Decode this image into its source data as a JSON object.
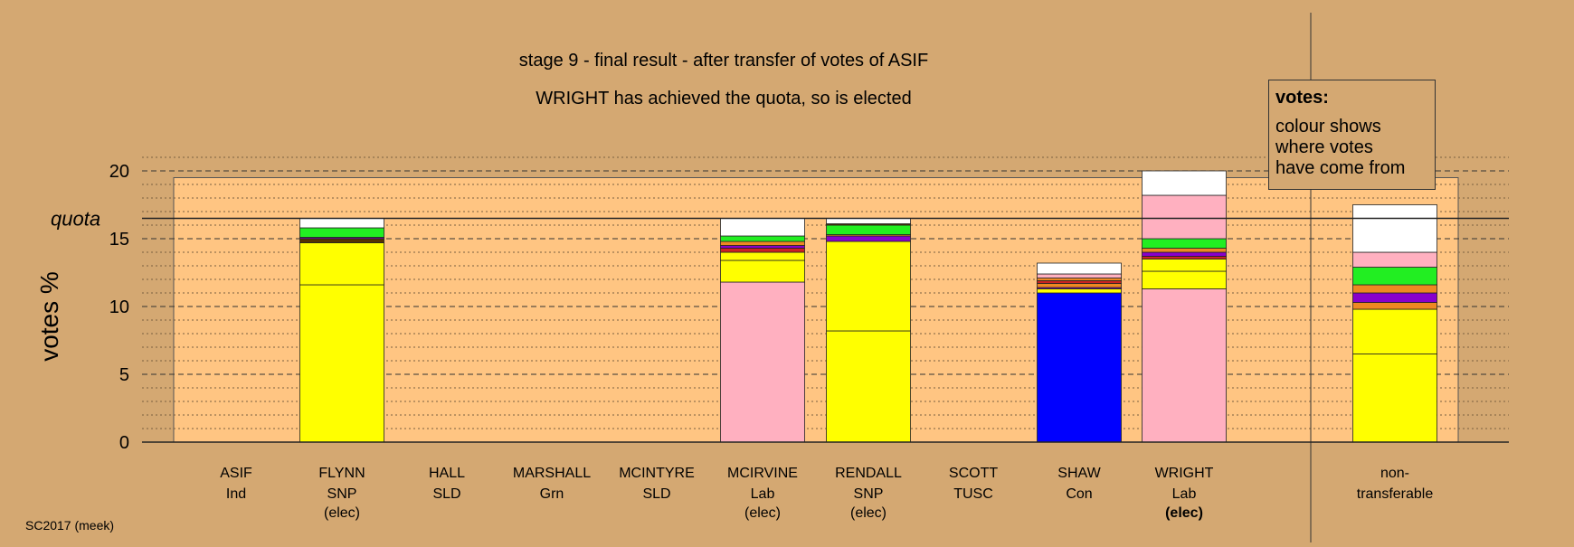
{
  "chart_data": {
    "type": "bar",
    "stacked": true,
    "title": "stage 9 - final result - after transfer of votes of ASIF",
    "subtitle": "WRIGHT has achieved the quota, so is elected",
    "ylabel": "votes %",
    "ylim": [
      0,
      21
    ],
    "yticks": [
      0,
      5,
      10,
      15,
      20
    ],
    "quota": 16.5,
    "quota_label": "quota",
    "grid": true,
    "legend": {
      "title": "votes:",
      "lines": [
        "colour shows",
        "where votes",
        "have come from"
      ],
      "position": "top-right"
    },
    "footnote": "SC2017 (meek)",
    "colors": {
      "yellow": "#ffff00",
      "pink": "#ffb0c0",
      "blue": "#0000ff",
      "green": "#22ee22",
      "orange": "#ee8822",
      "purple": "#8800cc",
      "red": "#cc2222",
      "darkbrown": "#553300",
      "white": "#ffffff",
      "plot_bg": "#ffc582",
      "page_bg": "#d4a872"
    },
    "categories": [
      {
        "name": "ASIF",
        "party": "Ind",
        "status": "",
        "segments": []
      },
      {
        "name": "FLYNN",
        "party": "SNP",
        "status": "(elec)",
        "status_bold": false,
        "segments": [
          {
            "color": "yellow",
            "value": 11.6
          },
          {
            "color": "yellow",
            "value": 3.1
          },
          {
            "color": "darkbrown",
            "value": 0.3
          },
          {
            "color": "purple",
            "value": 0.1
          },
          {
            "color": "green",
            "value": 0.7
          },
          {
            "color": "white",
            "value": 0.7
          }
        ]
      },
      {
        "name": "HALL",
        "party": "SLD",
        "status": "",
        "segments": []
      },
      {
        "name": "MARSHALL",
        "party": "Grn",
        "status": "",
        "segments": []
      },
      {
        "name": "MCINTYRE",
        "party": "SLD",
        "status": "",
        "segments": []
      },
      {
        "name": "MCIRVINE",
        "party": "Lab",
        "status": "(elec)",
        "status_bold": false,
        "segments": [
          {
            "color": "pink",
            "value": 11.8
          },
          {
            "color": "yellow",
            "value": 1.6
          },
          {
            "color": "yellow",
            "value": 0.6
          },
          {
            "color": "red",
            "value": 0.3
          },
          {
            "color": "purple",
            "value": 0.2
          },
          {
            "color": "orange",
            "value": 0.3
          },
          {
            "color": "green",
            "value": 0.4
          },
          {
            "color": "white",
            "value": 1.3
          }
        ]
      },
      {
        "name": "RENDALL",
        "party": "SNP",
        "status": "(elec)",
        "status_bold": false,
        "segments": [
          {
            "color": "yellow",
            "value": 8.2
          },
          {
            "color": "yellow",
            "value": 6.6
          },
          {
            "color": "purple",
            "value": 0.4
          },
          {
            "color": "orange",
            "value": 0.1
          },
          {
            "color": "green",
            "value": 0.7
          },
          {
            "color": "darkbrown",
            "value": 0.1
          },
          {
            "color": "white",
            "value": 0.4
          }
        ]
      },
      {
        "name": "SCOTT",
        "party": "TUSC",
        "status": "",
        "segments": []
      },
      {
        "name": "SHAW",
        "party": "Con",
        "status": "",
        "segments": [
          {
            "color": "blue",
            "value": 11.0
          },
          {
            "color": "yellow",
            "value": 0.3
          },
          {
            "color": "purple",
            "value": 0.1
          },
          {
            "color": "orange",
            "value": 0.3
          },
          {
            "color": "red",
            "value": 0.2
          },
          {
            "color": "orange",
            "value": 0.2
          },
          {
            "color": "pink",
            "value": 0.3
          },
          {
            "color": "white",
            "value": 0.8
          }
        ]
      },
      {
        "name": "WRIGHT",
        "party": "Lab",
        "status": "(elec)",
        "status_bold": true,
        "segments": [
          {
            "color": "pink",
            "value": 11.3
          },
          {
            "color": "yellow",
            "value": 1.3
          },
          {
            "color": "yellow",
            "value": 0.9
          },
          {
            "color": "red",
            "value": 0.2
          },
          {
            "color": "purple",
            "value": 0.3
          },
          {
            "color": "orange",
            "value": 0.3
          },
          {
            "color": "green",
            "value": 0.7
          },
          {
            "color": "pink",
            "value": 3.2
          },
          {
            "color": "white",
            "value": 1.8
          }
        ]
      },
      {
        "name": "non-",
        "party": "transferable",
        "status": "",
        "status_bold": false,
        "separated": true,
        "segments": [
          {
            "color": "yellow",
            "value": 6.5
          },
          {
            "color": "yellow",
            "value": 3.3
          },
          {
            "color": "orange",
            "value": 0.5
          },
          {
            "color": "purple",
            "value": 0.7
          },
          {
            "color": "orange",
            "value": 0.6
          },
          {
            "color": "green",
            "value": 1.3
          },
          {
            "color": "pink",
            "value": 1.1
          },
          {
            "color": "white",
            "value": 3.5
          }
        ]
      }
    ]
  }
}
